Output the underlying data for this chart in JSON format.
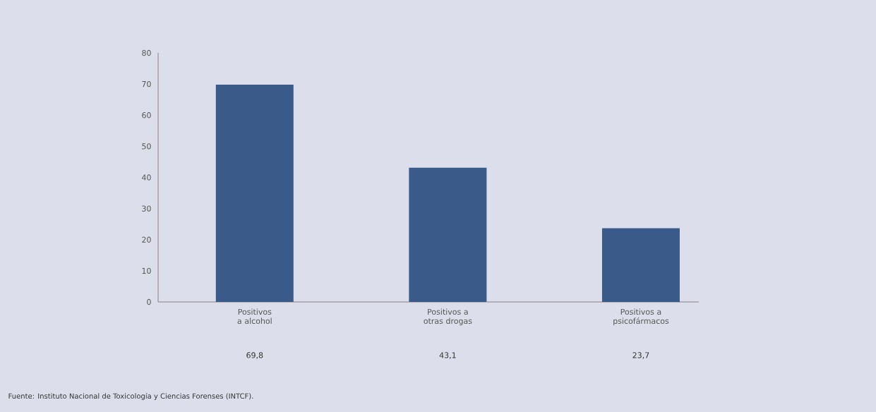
{
  "chart_data": {
    "type": "bar",
    "categories": [
      "Positivos a alcohol",
      "Positivos a otras drogas",
      "Positivos a psicofármacos"
    ],
    "values": [
      69.8,
      43.1,
      23.7
    ],
    "color": "#3a5a8a",
    "value_labels": [
      "69,8",
      "43,1",
      "23,7"
    ],
    "ylim": [
      0,
      80
    ],
    "yticks": [
      0,
      10,
      20,
      30,
      40,
      50,
      60,
      70,
      80
    ],
    "annotations": [
      "Fuente: Instituto Nacional de Toxicología y Ciencias Forenses (INTCF)."
    ]
  }
}
